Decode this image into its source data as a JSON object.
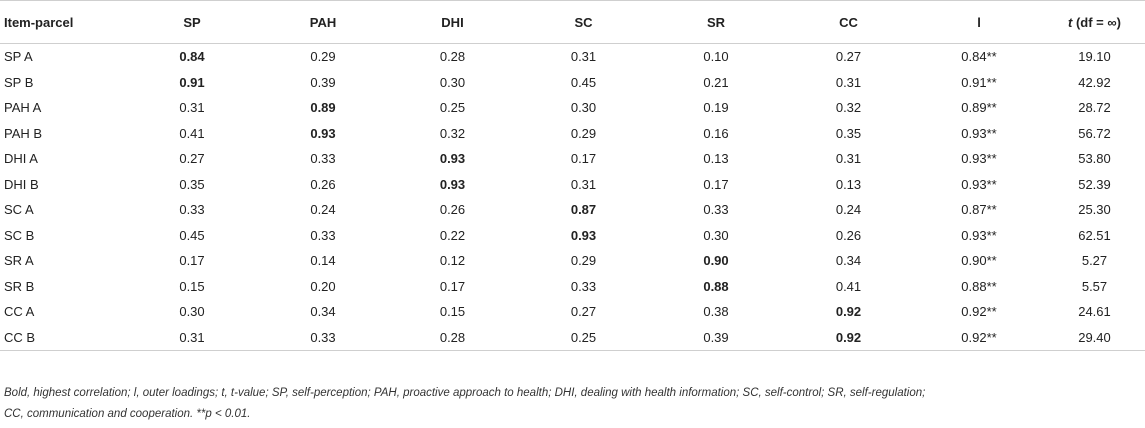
{
  "table": {
    "headers": [
      "Item-parcel",
      "SP",
      "PAH",
      "DHI",
      "SC",
      "SR",
      "CC",
      "l",
      "t",
      "(df = ∞)"
    ],
    "rows": [
      {
        "label": "SP A",
        "cells": [
          "0.84",
          "0.29",
          "0.28",
          "0.31",
          "0.10",
          "0.27",
          "0.84**",
          "19.10"
        ],
        "bold": 0
      },
      {
        "label": "SP B",
        "cells": [
          "0.91",
          "0.39",
          "0.30",
          "0.45",
          "0.21",
          "0.31",
          "0.91**",
          "42.92"
        ],
        "bold": 0
      },
      {
        "label": "PAH A",
        "cells": [
          "0.31",
          "0.89",
          "0.25",
          "0.30",
          "0.19",
          "0.32",
          "0.89**",
          "28.72"
        ],
        "bold": 1
      },
      {
        "label": "PAH B",
        "cells": [
          "0.41",
          "0.93",
          "0.32",
          "0.29",
          "0.16",
          "0.35",
          "0.93**",
          "56.72"
        ],
        "bold": 1
      },
      {
        "label": "DHI A",
        "cells": [
          "0.27",
          "0.33",
          "0.93",
          "0.17",
          "0.13",
          "0.31",
          "0.93**",
          "53.80"
        ],
        "bold": 2
      },
      {
        "label": "DHI B",
        "cells": [
          "0.35",
          "0.26",
          "0.93",
          "0.31",
          "0.17",
          "0.13",
          "0.93**",
          "52.39"
        ],
        "bold": 2
      },
      {
        "label": "SC A",
        "cells": [
          "0.33",
          "0.24",
          "0.26",
          "0.87",
          "0.33",
          "0.24",
          "0.87**",
          "25.30"
        ],
        "bold": 3
      },
      {
        "label": "SC B",
        "cells": [
          "0.45",
          "0.33",
          "0.22",
          "0.93",
          "0.30",
          "0.26",
          "0.93**",
          "62.51"
        ],
        "bold": 3
      },
      {
        "label": "SR A",
        "cells": [
          "0.17",
          "0.14",
          "0.12",
          "0.29",
          "0.90",
          "0.34",
          "0.90**",
          "5.27"
        ],
        "bold": 4
      },
      {
        "label": "SR B",
        "cells": [
          "0.15",
          "0.20",
          "0.17",
          "0.33",
          "0.88",
          "0.41",
          "0.88**",
          "5.57"
        ],
        "bold": 4
      },
      {
        "label": "CC A",
        "cells": [
          "0.30",
          "0.34",
          "0.15",
          "0.27",
          "0.38",
          "0.92",
          "0.92**",
          "24.61"
        ],
        "bold": 5
      },
      {
        "label": "CC B",
        "cells": [
          "0.31",
          "0.33",
          "0.28",
          "0.25",
          "0.39",
          "0.92",
          "0.92**",
          "29.40"
        ],
        "bold": 5
      }
    ]
  },
  "footnote": {
    "line1": "Bold, highest correlation; l, outer loadings; t, t-value; SP, self-perception; PAH, proactive approach to health; DHI, dealing with health information; SC, self-control; SR, self-regulation;",
    "line2": "CC, communication and cooperation. **p < 0.01."
  }
}
